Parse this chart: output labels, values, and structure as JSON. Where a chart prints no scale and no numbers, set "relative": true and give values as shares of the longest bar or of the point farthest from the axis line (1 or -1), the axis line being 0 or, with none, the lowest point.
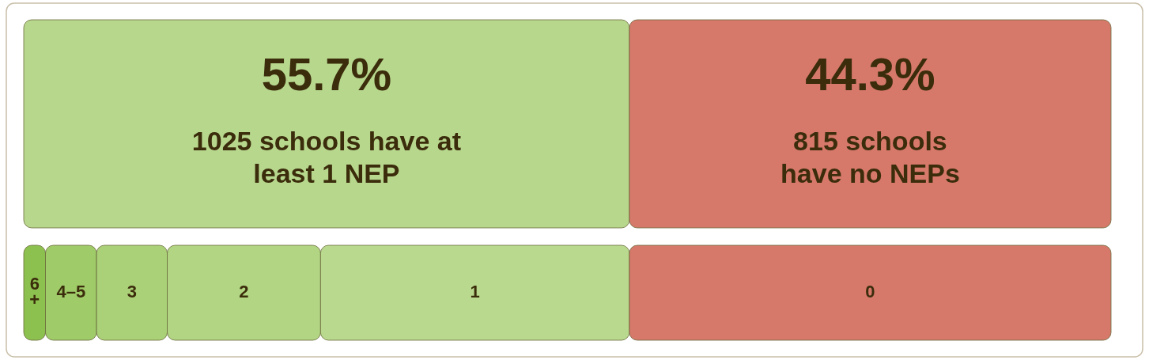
{
  "chart_data": [
    {
      "type": "bar",
      "orientation": "horizontal",
      "stacked": true,
      "categories": [
        null
      ],
      "xlim": [
        0,
        100
      ],
      "tick_labels": false,
      "series": [
        {
          "name": "1025 schools have at least 1 NEP",
          "color": "#b7d78d",
          "values": [
            55.7
          ],
          "value_labels": [
            "55.7%"
          ]
        },
        {
          "name": "815 schools have no NEPs",
          "color": "#d6796a",
          "values": [
            44.3
          ],
          "value_labels": [
            "44.3%"
          ]
        }
      ]
    },
    {
      "type": "bar",
      "orientation": "horizontal",
      "stacked": true,
      "relative": true,
      "categories": [
        null
      ],
      "series": [
        {
          "name": "6+",
          "color": "#8cc14f",
          "values": [
            0.02
          ]
        },
        {
          "name": "4–5",
          "color": "#9fcb69",
          "values": [
            0.047
          ]
        },
        {
          "name": "3",
          "color": "#aad178",
          "values": [
            0.065
          ]
        },
        {
          "name": "2",
          "color": "#b1d582",
          "values": [
            0.141
          ]
        },
        {
          "name": "1",
          "color": "#b9da8e",
          "values": [
            0.284
          ]
        },
        {
          "name": "0",
          "color": "#d6796a",
          "values": [
            0.443
          ]
        }
      ]
    }
  ]
}
